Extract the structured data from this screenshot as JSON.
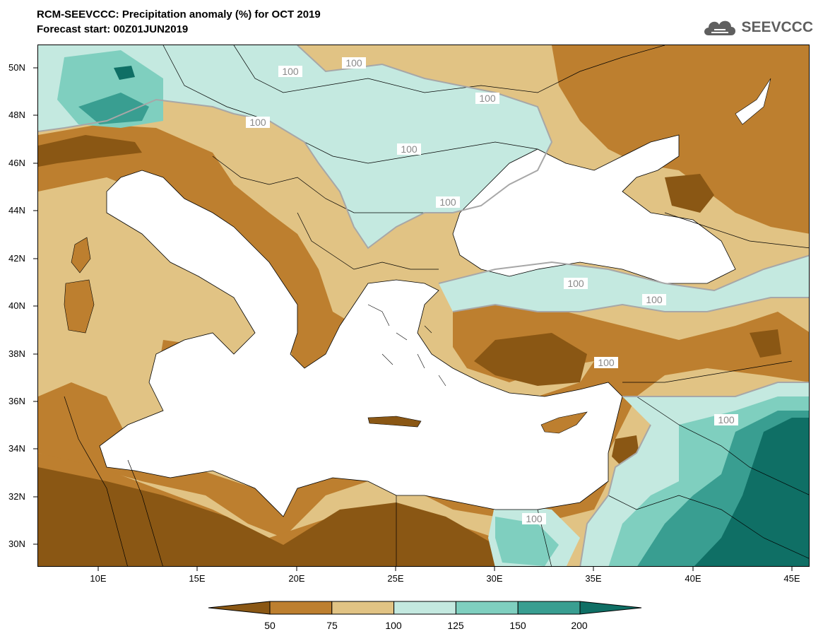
{
  "header": {
    "title": "RCM-SEEVCCC: Precipitation anomaly (%) for OCT 2019",
    "subtitle": "Forecast start: 00Z01JUN2019"
  },
  "logo": {
    "text": "SEEVCCC",
    "icon": "cloud-icon"
  },
  "map": {
    "variable": "Precipitation anomaly (%)",
    "lon_range": [
      7,
      46
    ],
    "lat_range": [
      29,
      51
    ],
    "lat_ticks": [
      "50N",
      "48N",
      "46N",
      "44N",
      "42N",
      "40N",
      "38N",
      "36N",
      "34N",
      "32N",
      "30N"
    ],
    "lon_ticks": [
      "10E",
      "15E",
      "20E",
      "25E",
      "30E",
      "35E",
      "40E",
      "45E"
    ],
    "contour_labels": [
      "100",
      "100",
      "100",
      "100",
      "100",
      "100",
      "100",
      "100",
      "100",
      "100",
      "100"
    ]
  },
  "colorbar": {
    "levels": [
      "50",
      "75",
      "100",
      "125",
      "150",
      "200"
    ],
    "colors": [
      "#8a5714",
      "#bd7f2f",
      "#e1c384",
      "#c4e9e0",
      "#7fcfbf",
      "#399e91",
      "#0f6f65"
    ]
  }
}
